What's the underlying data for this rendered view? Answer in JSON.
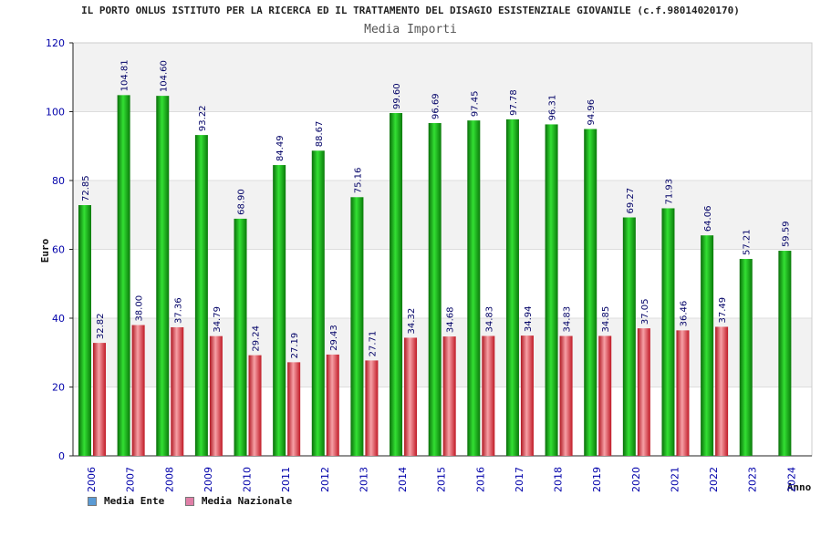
{
  "header": {
    "title": "IL PORTO ONLUS ISTITUTO PER LA RICERCA ED IL TRATTAMENTO DEL DISAGIO ESISTENZIALE GIOVANILE (c.f.98014020170)",
    "subtitle": "Media Importi"
  },
  "legend": {
    "items": [
      {
        "label": "Media Ente",
        "color": "#5b9bd5"
      },
      {
        "label": "Media Nazionale",
        "color": "#e07fa7"
      }
    ]
  },
  "colors": {
    "ente_bar": "#19b319",
    "nazionale_bar": "#e0303a",
    "axis_text": "#0000aa",
    "band": "#f2f2f2"
  },
  "chart_data": {
    "type": "bar",
    "title": "Media Importi",
    "xlabel": "Anno",
    "ylabel": "Euro",
    "ylim": [
      0,
      120
    ],
    "yticks": [
      0,
      20,
      40,
      60,
      80,
      100,
      120
    ],
    "categories": [
      "2006",
      "2007",
      "2008",
      "2009",
      "2010",
      "2011",
      "2012",
      "2013",
      "2014",
      "2015",
      "2016",
      "2017",
      "2018",
      "2019",
      "2020",
      "2021",
      "2022",
      "2023",
      "2024"
    ],
    "series": [
      {
        "name": "Media Ente",
        "values": [
          72.85,
          104.81,
          104.6,
          93.22,
          68.9,
          84.49,
          88.67,
          75.16,
          99.6,
          96.69,
          97.45,
          97.78,
          96.31,
          94.96,
          69.27,
          71.93,
          64.06,
          57.21,
          59.59
        ],
        "labels": [
          "72.85",
          "104.81",
          "104.60",
          "93.22",
          "68.90",
          "84.49",
          "88.67",
          "75.16",
          "99.60",
          "96.69",
          "97.45",
          "97.78",
          "96.31",
          "94.96",
          "69.27",
          "71.93",
          "64.06",
          "57.21",
          "59.59"
        ]
      },
      {
        "name": "Media Nazionale",
        "values": [
          32.82,
          38.0,
          37.36,
          34.79,
          29.24,
          27.19,
          29.43,
          27.71,
          34.32,
          34.68,
          34.83,
          34.94,
          34.83,
          34.85,
          37.05,
          36.46,
          37.49,
          null,
          null
        ],
        "labels": [
          "32.82",
          "38.00",
          "37.36",
          "34.79",
          "29.24",
          "27.19",
          "29.43",
          "27.71",
          "34.32",
          "34.68",
          "34.83",
          "34.94",
          "34.83",
          "34.85",
          "37.05",
          "36.46",
          "37.49",
          null,
          null
        ]
      }
    ]
  }
}
